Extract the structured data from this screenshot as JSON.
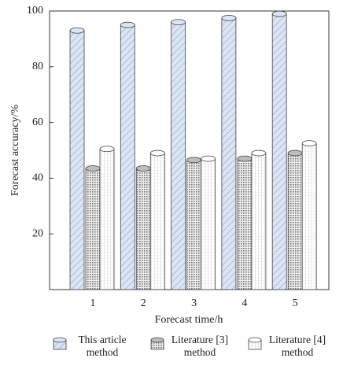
{
  "chart_data": {
    "type": "bar",
    "x_label": "Forecast time/h",
    "y_label": "Forecast accuracy/%",
    "categories": [
      "1",
      "2",
      "3",
      "4",
      "5"
    ],
    "series": [
      {
        "name": "This article method",
        "color": "#dbe5f4",
        "values": [
          93,
          95,
          96,
          97.5,
          99
        ]
      },
      {
        "name": "Literature [3] method",
        "color": "#bdbdbd",
        "values": [
          43.5,
          43.5,
          46.5,
          47,
          49
        ]
      },
      {
        "name": "Literature [4] method",
        "color": "#ffffff",
        "values": [
          50.5,
          49,
          47,
          49,
          52.5
        ]
      }
    ],
    "ylim": [
      0,
      100
    ],
    "yticks": [
      20,
      40,
      60,
      80,
      100
    ]
  }
}
